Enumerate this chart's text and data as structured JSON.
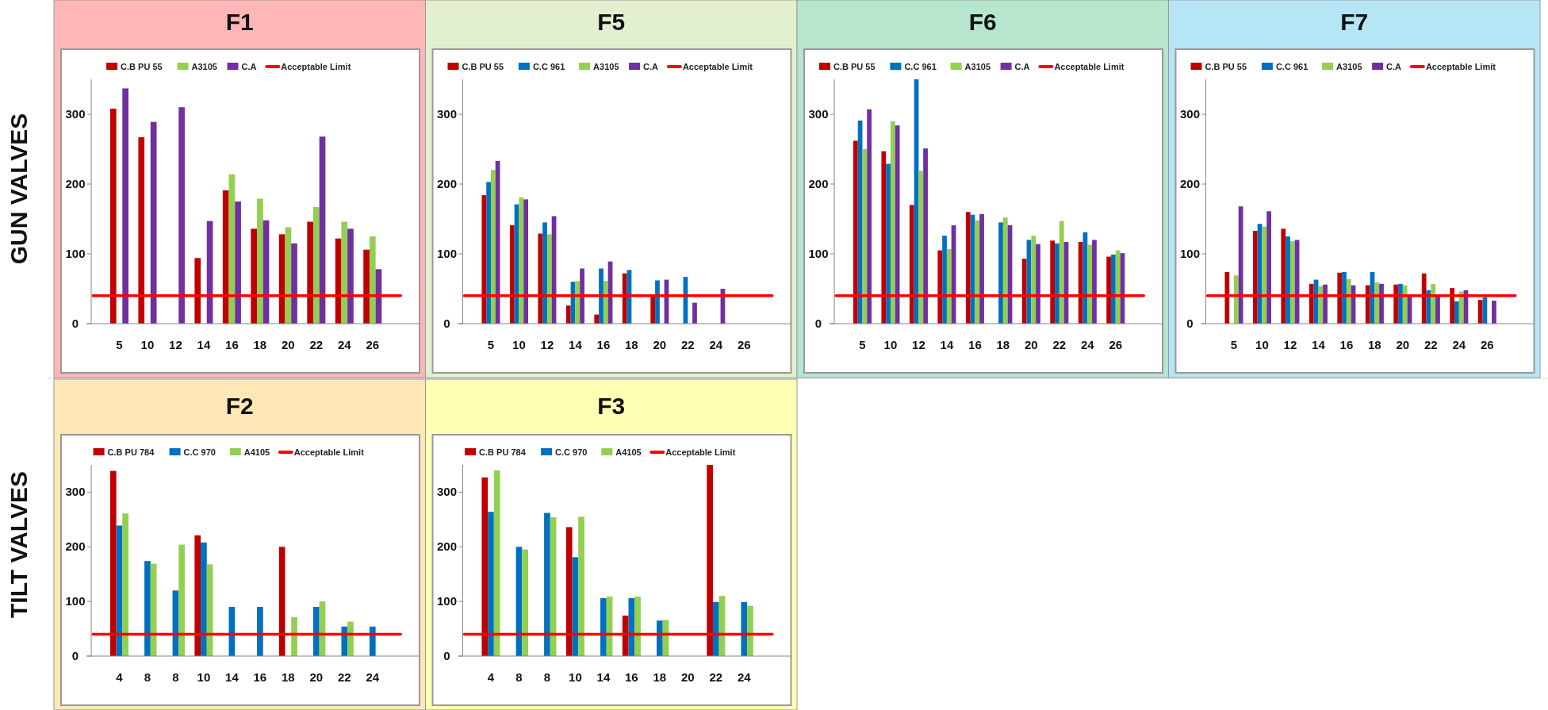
{
  "chart_data": [
    {
      "type": "bar",
      "title": "F1",
      "annotations": [
        "GUN VALVES"
      ],
      "legend": "top",
      "categories": [
        "5",
        "10",
        "12",
        "14",
        "16",
        "18",
        "20",
        "22",
        "24",
        "26"
      ],
      "ylim": [
        0,
        350
      ],
      "yticks": [
        0,
        100,
        200,
        300
      ],
      "ref_lines": [
        {
          "axis": "y",
          "value": 40,
          "label": "Acceptable Limit",
          "color": "#ff0000"
        }
      ],
      "series": [
        {
          "name": "C.B PU 55",
          "color": "#c00000",
          "values": [
            308,
            267,
            null,
            94,
            191,
            136,
            128,
            146,
            122,
            106
          ]
        },
        {
          "name": "A3105",
          "color": "#92d050",
          "values": [
            null,
            null,
            null,
            null,
            214,
            179,
            138,
            167,
            146,
            125
          ]
        },
        {
          "name": "C.A",
          "color": "#7030a0",
          "values": [
            337,
            289,
            310,
            147,
            175,
            148,
            115,
            268,
            136,
            78
          ]
        }
      ]
    },
    {
      "type": "bar",
      "title": "F5",
      "legend": "top",
      "categories": [
        "5",
        "10",
        "12",
        "14",
        "16",
        "18",
        "20",
        "22",
        "24",
        "26"
      ],
      "ylim": [
        0,
        350
      ],
      "yticks": [
        0,
        100,
        200,
        300
      ],
      "ref_lines": [
        {
          "axis": "y",
          "value": 40,
          "label": "Acceptable Limit",
          "color": "#ff0000"
        }
      ],
      "series": [
        {
          "name": "C.B PU 55",
          "color": "#c00000",
          "values": [
            184,
            141,
            129,
            26,
            13,
            72,
            40,
            null,
            null,
            null
          ]
        },
        {
          "name": "C.C 961",
          "color": "#0070c0",
          "values": [
            203,
            171,
            145,
            60,
            79,
            77,
            62,
            67,
            null,
            null
          ]
        },
        {
          "name": "A3105",
          "color": "#92d050",
          "values": [
            220,
            181,
            128,
            61,
            61,
            null,
            null,
            null,
            null,
            null
          ]
        },
        {
          "name": "C.A",
          "color": "#7030a0",
          "values": [
            233,
            178,
            154,
            79,
            89,
            null,
            63,
            30,
            50,
            null
          ]
        }
      ]
    },
    {
      "type": "bar",
      "title": "F6",
      "legend": "top",
      "categories": [
        "5",
        "10",
        "12",
        "14",
        "16",
        "18",
        "20",
        "22",
        "24",
        "26"
      ],
      "ylim": [
        0,
        350
      ],
      "yticks": [
        0,
        100,
        200,
        300
      ],
      "ref_lines": [
        {
          "axis": "y",
          "value": 40,
          "label": "Acceptable Limit",
          "color": "#ff0000"
        }
      ],
      "series": [
        {
          "name": "C.B PU 55",
          "color": "#c00000",
          "values": [
            262,
            247,
            170,
            105,
            160,
            null,
            93,
            119,
            117,
            96
          ]
        },
        {
          "name": "C.C 961",
          "color": "#0070c0",
          "values": [
            291,
            229,
            350,
            126,
            156,
            145,
            120,
            115,
            131,
            99
          ]
        },
        {
          "name": "A3105",
          "color": "#92d050",
          "values": [
            250,
            290,
            219,
            107,
            148,
            152,
            126,
            147,
            113,
            105
          ]
        },
        {
          "name": "C.A",
          "color": "#7030a0",
          "values": [
            307,
            284,
            251,
            141,
            157,
            141,
            114,
            117,
            120,
            101
          ]
        }
      ]
    },
    {
      "type": "bar",
      "title": "F7",
      "legend": "top",
      "categories": [
        "5",
        "10",
        "12",
        "14",
        "16",
        "18",
        "20",
        "22",
        "24",
        "26"
      ],
      "ylim": [
        0,
        350
      ],
      "yticks": [
        0,
        100,
        200,
        300
      ],
      "ref_lines": [
        {
          "axis": "y",
          "value": 40,
          "label": "Acceptable Limit",
          "color": "#ff0000"
        }
      ],
      "series": [
        {
          "name": "C.B PU 55",
          "color": "#c00000",
          "values": [
            74,
            133,
            136,
            57,
            73,
            55,
            56,
            72,
            51,
            34
          ]
        },
        {
          "name": "C.C 961",
          "color": "#0070c0",
          "values": [
            null,
            143,
            125,
            63,
            74,
            74,
            57,
            48,
            32,
            38
          ]
        },
        {
          "name": "A3105",
          "color": "#92d050",
          "values": [
            69,
            139,
            118,
            54,
            64,
            59,
            55,
            57,
            46,
            null
          ]
        },
        {
          "name": "C.A",
          "color": "#7030a0",
          "values": [
            168,
            161,
            120,
            56,
            55,
            57,
            40,
            40,
            48,
            33
          ]
        }
      ]
    },
    {
      "type": "bar",
      "title": "F2",
      "annotations": [
        "TILT VALVES"
      ],
      "legend": "top",
      "categories": [
        "4",
        "8",
        "8",
        "10",
        "14",
        "16",
        "18",
        "20",
        "22",
        "24"
      ],
      "ylim": [
        0,
        350
      ],
      "yticks": [
        0,
        100,
        200,
        300
      ],
      "ref_lines": [
        {
          "axis": "y",
          "value": 40,
          "label": "Acceptable Limit",
          "color": "#ff0000"
        }
      ],
      "series": [
        {
          "name": "C.B PU 784",
          "color": "#c00000",
          "values": [
            339,
            null,
            null,
            221,
            null,
            null,
            200,
            null,
            null,
            null
          ]
        },
        {
          "name": "C.C 970",
          "color": "#0070c0",
          "values": [
            239,
            174,
            120,
            208,
            90,
            90,
            null,
            90,
            54,
            54
          ]
        },
        {
          "name": "A4105",
          "color": "#92d050",
          "values": [
            261,
            169,
            204,
            168,
            null,
            null,
            71,
            100,
            63,
            null
          ]
        }
      ]
    },
    {
      "type": "bar",
      "title": "F3",
      "legend": "top",
      "categories": [
        "4",
        "8",
        "8",
        "10",
        "14",
        "16",
        "18",
        "20",
        "22",
        "24"
      ],
      "ylim": [
        0,
        350
      ],
      "yticks": [
        0,
        100,
        200,
        300
      ],
      "ref_lines": [
        {
          "axis": "y",
          "value": 40,
          "label": "Acceptable Limit",
          "color": "#ff0000"
        }
      ],
      "series": [
        {
          "name": "C.B PU 784",
          "color": "#c00000",
          "values": [
            327,
            null,
            null,
            236,
            null,
            74,
            null,
            null,
            350,
            null
          ]
        },
        {
          "name": "C.C 970",
          "color": "#0070c0",
          "values": [
            264,
            200,
            262,
            181,
            106,
            106,
            65,
            null,
            99,
            99
          ]
        },
        {
          "name": "A4105",
          "color": "#92d050",
          "values": [
            340,
            195,
            254,
            255,
            109,
            109,
            66,
            null,
            110,
            92
          ]
        }
      ]
    }
  ]
}
